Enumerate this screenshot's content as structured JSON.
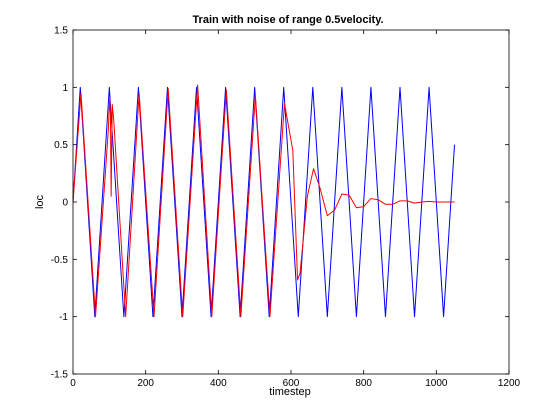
{
  "chart_data": {
    "type": "line",
    "title": "Train with noise of range 0.5velocity.",
    "xlabel": "timestep",
    "ylabel": "loc",
    "xlim": [
      0,
      1200
    ],
    "ylim": [
      -1.5,
      1.5
    ],
    "xticks": [
      0,
      200,
      400,
      600,
      800,
      1000,
      1200
    ],
    "xtick_labels": [
      "0",
      "200",
      "400",
      "600",
      "800",
      "1000",
      "1200"
    ],
    "yticks": [
      -1.5,
      -1,
      -0.5,
      0,
      0.5,
      1,
      1.5
    ],
    "ytick_labels": [
      "-1.5",
      "-1",
      "-0.5",
      "0",
      "0.5",
      "1",
      "1.5"
    ],
    "grid": false,
    "legend": "none",
    "series": [
      {
        "color": "#0000ff",
        "x": [
          0,
          20,
          60,
          100,
          140,
          180,
          220,
          260,
          300,
          340,
          380,
          420,
          460,
          500,
          540,
          580,
          620,
          660,
          700,
          740,
          780,
          820,
          860,
          900,
          940,
          980,
          1020,
          1050
        ],
        "y": [
          0,
          1,
          -1,
          1,
          -1,
          1,
          -1,
          1,
          -1,
          1,
          -1,
          1,
          -1,
          1,
          -1,
          1,
          -1,
          1,
          -1,
          1,
          -1,
          1,
          -1,
          1,
          -1,
          1,
          -1,
          0.5
        ]
      },
      {
        "color": "#ff0000",
        "x": [
          0,
          22,
          62,
          97,
          101,
          103,
          105,
          108,
          112,
          145,
          182,
          223,
          262,
          302,
          343,
          382,
          422,
          462,
          502,
          542,
          582,
          605,
          618,
          625,
          645,
          662,
          680,
          700,
          720,
          740,
          760,
          780,
          800,
          820,
          840,
          860,
          880,
          900,
          920,
          940,
          960,
          980,
          1000,
          1020,
          1050
        ],
        "y": [
          0,
          0.95,
          -1,
          0.62,
          0.9,
          0.78,
          0.05,
          0.85,
          0.72,
          -1,
          0.95,
          -1,
          0.99,
          -1,
          1.02,
          -1,
          0.98,
          -1,
          0.93,
          -1,
          0.86,
          0.45,
          -0.68,
          -0.62,
          0.05,
          0.29,
          0.12,
          -0.12,
          -0.07,
          0.07,
          0.06,
          -0.05,
          -0.04,
          0.03,
          0.02,
          -0.02,
          -0.02,
          0.01,
          0.01,
          -0.01,
          0,
          0.005,
          0,
          0,
          0
        ]
      }
    ]
  }
}
